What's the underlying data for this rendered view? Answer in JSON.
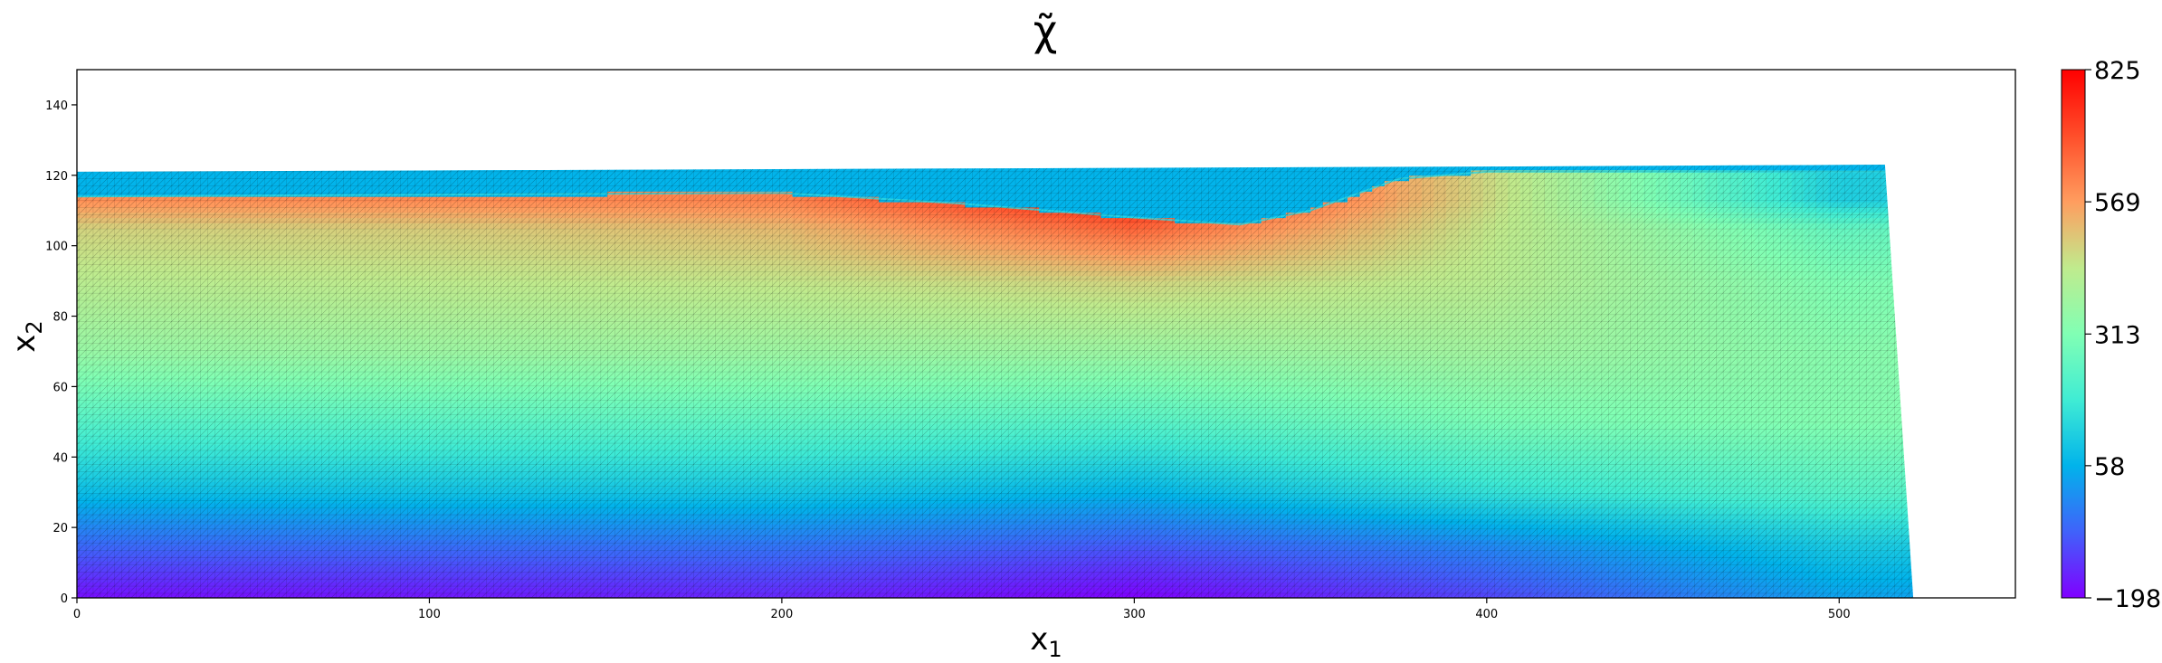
{
  "chart_data": {
    "type": "heatmap",
    "title": "χ̃",
    "xlabel_base": "x",
    "xlabel_sub": "1",
    "ylabel_base": "x",
    "ylabel_sub": "2",
    "xlim": [
      0,
      550
    ],
    "ylim": [
      0,
      150
    ],
    "xticks": [
      0,
      100,
      200,
      300,
      400,
      500
    ],
    "yticks": [
      0,
      20,
      40,
      60,
      80,
      100,
      120,
      140
    ],
    "colorbar": {
      "min": -198,
      "max": 825,
      "ticks": [
        -198,
        58,
        313,
        569,
        825
      ],
      "tick_labels": [
        "−198",
        "58",
        "313",
        "569",
        "825"
      ],
      "colormap": "rainbow",
      "colors": [
        "#8000ff",
        "#4062fa",
        "#01b3eb",
        "#40ecd4",
        "#81ffb4",
        "#c0eb8d",
        "#ff9d5f",
        "#ff4e2a",
        "#ff0000"
      ]
    },
    "domain_outline": [
      [
        0,
        0
      ],
      [
        521,
        0
      ],
      [
        513,
        123
      ],
      [
        400,
        122.5
      ],
      [
        0,
        121
      ]
    ],
    "surface_band_value": 60,
    "interface_top_profile": [
      [
        0,
        114
      ],
      [
        100,
        114.5
      ],
      [
        200,
        115
      ],
      [
        250,
        112
      ],
      [
        300,
        108
      ],
      [
        330,
        106
      ],
      [
        350,
        110
      ],
      [
        375,
        119
      ],
      [
        400,
        121
      ],
      [
        513,
        121
      ]
    ],
    "field_samples": [
      {
        "x": 0,
        "values": [
          -180,
          -60,
          80,
          230,
          360,
          430,
          480,
          590
        ]
      },
      {
        "x": 100,
        "values": [
          -170,
          -50,
          90,
          240,
          370,
          440,
          490,
          600
        ]
      },
      {
        "x": 200,
        "values": [
          -150,
          -40,
          100,
          250,
          370,
          450,
          520,
          610
        ]
      },
      {
        "x": 300,
        "values": [
          -198,
          -80,
          60,
          230,
          370,
          480,
          660,
          780
        ]
      },
      {
        "x": 400,
        "values": [
          -110,
          -10,
          160,
          300,
          380,
          430,
          450,
          470
        ]
      },
      {
        "x": 500,
        "values": [
          30,
          110,
          230,
          320,
          330,
          310,
          260,
          120
        ]
      }
    ],
    "field_sample_y": [
      0,
      15,
      30,
      50,
      70,
      90,
      105,
      113
    ]
  }
}
